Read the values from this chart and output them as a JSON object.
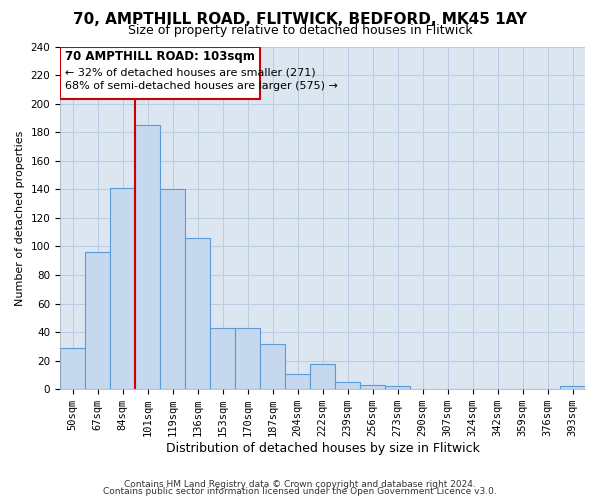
{
  "title": "70, AMPTHILL ROAD, FLITWICK, BEDFORD, MK45 1AY",
  "subtitle": "Size of property relative to detached houses in Flitwick",
  "xlabel": "Distribution of detached houses by size in Flitwick",
  "ylabel": "Number of detached properties",
  "bin_labels": [
    "50sqm",
    "67sqm",
    "84sqm",
    "101sqm",
    "119sqm",
    "136sqm",
    "153sqm",
    "170sqm",
    "187sqm",
    "204sqm",
    "222sqm",
    "239sqm",
    "256sqm",
    "273sqm",
    "290sqm",
    "307sqm",
    "324sqm",
    "342sqm",
    "359sqm",
    "376sqm",
    "393sqm"
  ],
  "bar_heights": [
    29,
    96,
    141,
    185,
    140,
    106,
    43,
    43,
    32,
    11,
    18,
    5,
    3,
    2,
    0,
    0,
    0,
    0,
    0,
    0,
    2
  ],
  "bar_color": "#c5d8ee",
  "bar_edge_color": "#5b9bd5",
  "vline_x_index": 3,
  "vline_color": "#cc0000",
  "annotation_box_title": "70 AMPTHILL ROAD: 103sqm",
  "annotation_line1": "← 32% of detached houses are smaller (271)",
  "annotation_line2": "68% of semi-detached houses are larger (575) →",
  "annotation_box_edge_color": "#cc0000",
  "ylim": [
    0,
    240
  ],
  "yticks": [
    0,
    20,
    40,
    60,
    80,
    100,
    120,
    140,
    160,
    180,
    200,
    220,
    240
  ],
  "footnote1": "Contains HM Land Registry data © Crown copyright and database right 2024.",
  "footnote2": "Contains public sector information licensed under the Open Government Licence v3.0.",
  "background_color": "#ffffff",
  "plot_bg_color": "#dce6f1",
  "grid_color": "#b8cce4",
  "title_fontsize": 11,
  "subtitle_fontsize": 9,
  "ylabel_fontsize": 8,
  "xlabel_fontsize": 9,
  "tick_fontsize": 7.5,
  "annot_title_fontsize": 8.5,
  "annot_text_fontsize": 8,
  "footnote_fontsize": 6.5
}
